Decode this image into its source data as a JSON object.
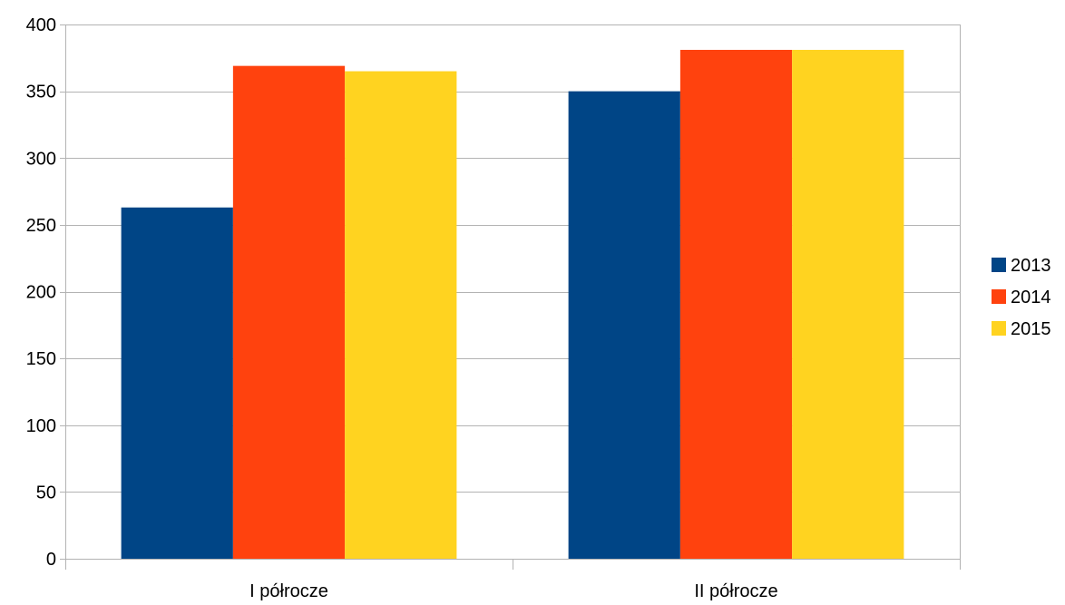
{
  "chart_data": {
    "type": "bar",
    "title": "",
    "xlabel": "",
    "ylabel": "",
    "categories": [
      "I półrocze",
      "II półrocze"
    ],
    "series": [
      {
        "name": "2013",
        "values": [
          263,
          350
        ],
        "color": "#004586"
      },
      {
        "name": "2014",
        "values": [
          369,
          381
        ],
        "color": "#FF420E"
      },
      {
        "name": "2015",
        "values": [
          365,
          381
        ],
        "color": "#FFD320"
      }
    ],
    "ylim": [
      0,
      400
    ],
    "yticks": [
      "0",
      "50",
      "100",
      "150",
      "200",
      "250",
      "300",
      "350",
      "400"
    ],
    "grid": true,
    "legend": "right"
  }
}
